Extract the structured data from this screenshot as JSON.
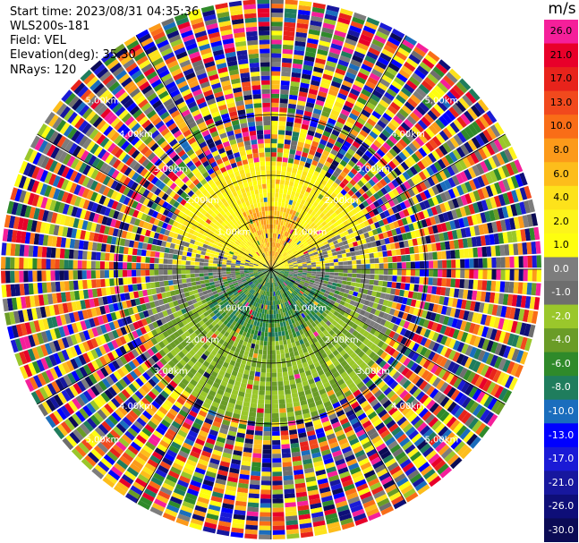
{
  "header": {
    "start_time": "Start time: 2023/08/31 04:35:36",
    "instrument": "WLS200s-181",
    "field": "Field: VEL",
    "elevation": "Elevation(deg): 35.30",
    "nrays": "NRays: 120"
  },
  "colorbar": {
    "unit": "m/s",
    "bins": [
      {
        "label": "26.0",
        "color": "#f51f9a"
      },
      {
        "label": "21.0",
        "color": "#e8002a"
      },
      {
        "label": "17.0",
        "color": "#e8231b"
      },
      {
        "label": "13.0",
        "color": "#f1491d"
      },
      {
        "label": "10.0",
        "color": "#f96d17"
      },
      {
        "label": "8.0",
        "color": "#fc9a1a"
      },
      {
        "label": "6.0",
        "color": "#fdbd1b"
      },
      {
        "label": "4.0",
        "color": "#fde21b"
      },
      {
        "label": "2.0",
        "color": "#fdf41b"
      },
      {
        "label": "1.0",
        "color": "#fefe0f"
      },
      {
        "label": "0.0",
        "color": "#7d7d7d"
      },
      {
        "label": "-1.0",
        "color": "#6e6e6e"
      },
      {
        "label": "-2.0",
        "color": "#9ac72b"
      },
      {
        "label": "-4.0",
        "color": "#6a9c27"
      },
      {
        "label": "-6.0",
        "color": "#2f8a2a"
      },
      {
        "label": "-8.0",
        "color": "#1f7d5d"
      },
      {
        "label": "-10.0",
        "color": "#1a6dbd"
      },
      {
        "label": "-13.0",
        "color": "#0000ff"
      },
      {
        "label": "-17.0",
        "color": "#1a1ad6"
      },
      {
        "label": "-21.0",
        "color": "#17179e"
      },
      {
        "label": "-26.0",
        "color": "#0e0e78"
      },
      {
        "label": "-30.0",
        "color": "#0b0b55"
      }
    ]
  },
  "range_rings": {
    "labels": [
      "1.00km",
      "2.00km",
      "3.00km",
      "4.00km",
      "5.00km"
    ]
  },
  "colors": {
    "background": "#ffffff",
    "ring_line": "#000000"
  }
}
